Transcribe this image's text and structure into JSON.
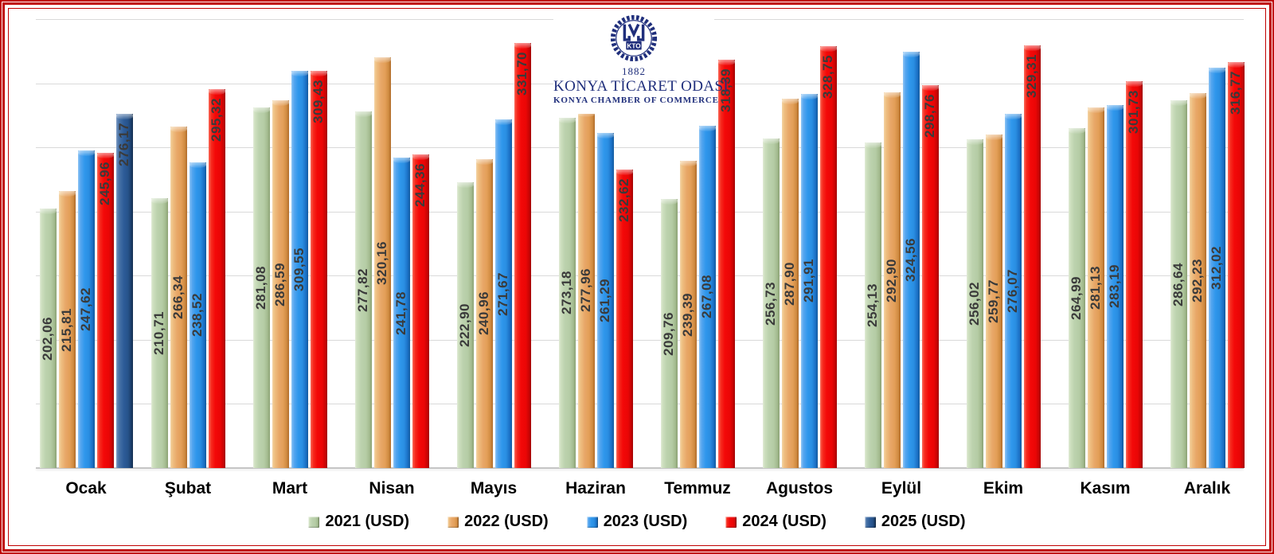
{
  "frame": {
    "border_color": "#C00000",
    "background": "#FFFFFF"
  },
  "logo": {
    "monogram": "KTO",
    "year": "1882",
    "title": "KONYA TİCARET ODASI",
    "subtitle": "KONYA CHAMBER OF COMMERCE",
    "color": "#202F7C"
  },
  "chart_data": {
    "type": "bar",
    "title": "",
    "categories": [
      "Ocak",
      "Şubat",
      "Mart",
      "Nisan",
      "Mayıs",
      "Haziran",
      "Temmuz",
      "Agustos",
      "Eylül",
      "Ekim",
      "Kasım",
      "Aralık"
    ],
    "series": [
      {
        "name": "2021 (USD)",
        "color": "#BCD2AE",
        "values": [
          202.06,
          210.71,
          281.08,
          277.82,
          222.9,
          273.18,
          209.76,
          256.73,
          254.13,
          256.02,
          264.99,
          286.64
        ]
      },
      {
        "name": "2022 (USD)",
        "color": "#E8A768",
        "values": [
          215.81,
          266.34,
          286.59,
          320.16,
          240.96,
          277.96,
          239.39,
          287.9,
          292.9,
          259.77,
          281.13,
          292.23
        ]
      },
      {
        "name": "2023 (USD)",
        "color": "#2F97EC",
        "values": [
          247.62,
          238.52,
          309.55,
          241.78,
          271.67,
          261.29,
          267.08,
          291.91,
          324.56,
          276.07,
          283.19,
          312.02
        ]
      },
      {
        "name": "2024 (USD)",
        "color": "#F30808",
        "values": [
          245.96,
          295.32,
          309.43,
          244.36,
          331.7,
          232.62,
          318.39,
          328.75,
          298.76,
          329.31,
          301.73,
          316.77
        ]
      },
      {
        "name": "2025 (USD)",
        "color": "#2D5C98",
        "values": [
          276.17,
          null,
          null,
          null,
          null,
          null,
          null,
          null,
          null,
          null,
          null,
          null
        ]
      }
    ],
    "ylim": [
      0,
      350
    ],
    "gridline_step": 50,
    "grid": true,
    "legend_position": "bottom",
    "value_labels": "on bars, rotated 90 degrees, comma decimal separator"
  }
}
